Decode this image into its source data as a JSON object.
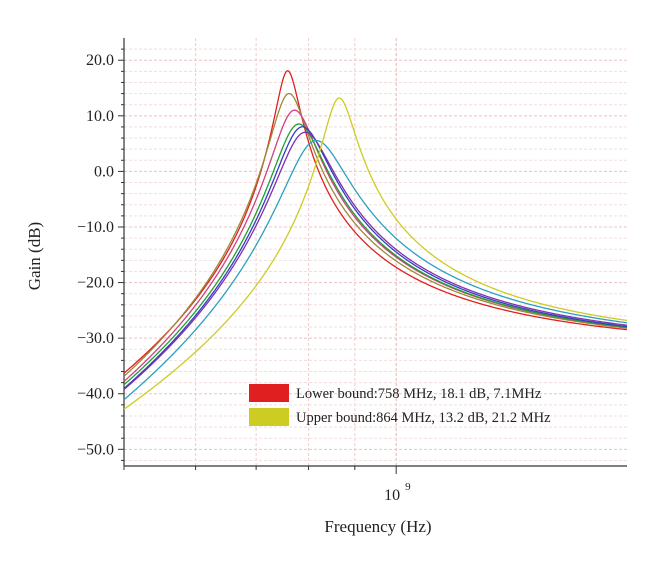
{
  "chart_data": {
    "type": "line",
    "xlabel": "Frequency (Hz)",
    "ylabel": "Gain (dB)",
    "x_scale": "log",
    "xlim": [
      500000000,
      1800000000
    ],
    "ylim": [
      -53,
      24
    ],
    "x_ticks": [
      {
        "value": 1000000000,
        "base": "10",
        "exponent": "9"
      }
    ],
    "y_ticks": [
      {
        "value": 20,
        "label": "20.0"
      },
      {
        "value": 10,
        "label": "10.0"
      },
      {
        "value": 0,
        "label": "0.0"
      },
      {
        "value": -10,
        "label": "−10.0"
      },
      {
        "value": -20,
        "label": "−20.0"
      },
      {
        "value": -30,
        "label": "−30.0"
      },
      {
        "value": -40,
        "label": "−40.0"
      },
      {
        "value": -50,
        "label": "−50.0"
      }
    ],
    "grid": true,
    "legend_position": "bottom-center",
    "legend": [
      {
        "label": "Lower bound:758 MHz, 18.1 dB, 7.1MHz",
        "color": "#e02020"
      },
      {
        "label": "Upper bound:864 MHz, 13.2 dB, 21.2 MHz",
        "color": "#cccc22"
      }
    ],
    "series": [
      {
        "color": "#e02020",
        "f0": 758000000,
        "peak": 18.1,
        "q": 18.5,
        "floor": -31.8
      },
      {
        "color": "#9b8a3a",
        "f0": 760000000,
        "peak": 14.0,
        "q": 12.0,
        "floor": -31.8
      },
      {
        "color": "#d04080",
        "f0": 770000000,
        "peak": 11.0,
        "q": 10.0,
        "floor": -31.8
      },
      {
        "color": "#20a030",
        "f0": 778000000,
        "peak": 8.5,
        "q": 9.0,
        "floor": -31.8
      },
      {
        "color": "#3040c0",
        "f0": 785000000,
        "peak": 8.0,
        "q": 8.5,
        "floor": -31.8
      },
      {
        "color": "#8030b0",
        "f0": 790000000,
        "peak": 7.0,
        "q": 8.0,
        "floor": -31.6
      },
      {
        "color": "#2aa0c0",
        "f0": 812000000,
        "peak": 5.5,
        "q": 7.0,
        "floor": -31.5
      },
      {
        "color": "#cccc22",
        "f0": 864000000,
        "peak": 13.2,
        "q": 14.0,
        "floor": -31.2
      }
    ]
  }
}
